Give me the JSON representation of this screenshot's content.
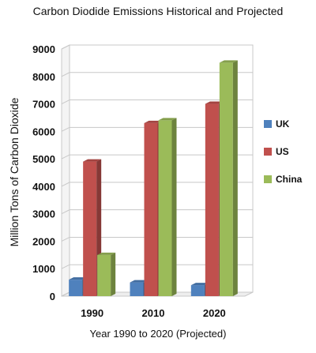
{
  "chart_data": {
    "type": "bar",
    "title": "Carbon Diodide Emissions Historical and Projected",
    "xlabel": "Year 1990 to 2020 (Projected)",
    "ylabel": "Million Tons of Carbon Dioxide",
    "categories": [
      "1990",
      "2010",
      "2020"
    ],
    "ylim": [
      0,
      9000
    ],
    "yticks": [
      "0",
      "1000",
      "2000",
      "3000",
      "4000",
      "5000",
      "6000",
      "7000",
      "8000",
      "9000"
    ],
    "grid": true,
    "legend_position": "right",
    "series": [
      {
        "name": "UK",
        "values": [
          600,
          500,
          400
        ],
        "color": "#4f81bd"
      },
      {
        "name": "US",
        "values": [
          4900,
          6300,
          7000
        ],
        "color": "#c0504d"
      },
      {
        "name": "China",
        "values": [
          1500,
          6400,
          8500
        ],
        "color": "#9bbb59"
      }
    ]
  }
}
